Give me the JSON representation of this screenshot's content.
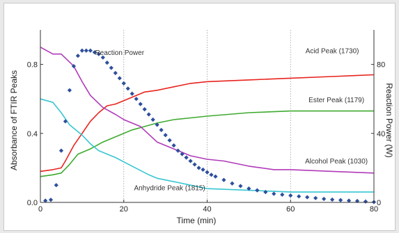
{
  "chart_data": {
    "type": "line",
    "xlabel": "Time (min)",
    "ylabel_left": "Absorbance of FTIR Peaks",
    "ylabel_right": "Reaction Power (W)",
    "xlim": [
      0,
      80
    ],
    "ylim_left": [
      0,
      1.0
    ],
    "ylim_right": [
      0,
      100
    ],
    "x_ticks": [
      "0",
      "20",
      "40",
      "60",
      "80"
    ],
    "y_left_ticks": [
      "0.0",
      "0.4",
      "0.8"
    ],
    "y_right_ticks": [
      "0",
      "40",
      "80"
    ],
    "grid": "vertical dotted at x = 20, 40, 60",
    "series": [
      {
        "name": "Acid Peak (1730)",
        "color": "#e8231e",
        "axis": "left",
        "x": [
          0,
          3,
          5,
          6,
          8,
          10,
          12,
          14,
          16,
          18,
          20,
          22,
          25,
          28,
          32,
          36,
          40,
          50,
          60,
          70,
          80
        ],
        "y": [
          0.18,
          0.19,
          0.2,
          0.24,
          0.33,
          0.4,
          0.47,
          0.52,
          0.56,
          0.57,
          0.59,
          0.61,
          0.64,
          0.65,
          0.67,
          0.69,
          0.7,
          0.71,
          0.72,
          0.73,
          0.74
        ]
      },
      {
        "name": "Ester Peak (1179)",
        "color": "#3daa2e",
        "axis": "left",
        "x": [
          0,
          3,
          5,
          7,
          9,
          10,
          12,
          15,
          18,
          20,
          22,
          25,
          28,
          32,
          36,
          40,
          50,
          60,
          70,
          80
        ],
        "y": [
          0.15,
          0.16,
          0.17,
          0.22,
          0.28,
          0.29,
          0.31,
          0.35,
          0.38,
          0.4,
          0.42,
          0.44,
          0.46,
          0.48,
          0.49,
          0.5,
          0.52,
          0.53,
          0.53,
          0.53
        ]
      },
      {
        "name": "Alcohol Peak (1030)",
        "color": "#b03ab8",
        "axis": "left",
        "x": [
          0,
          3,
          5,
          8,
          10,
          12,
          15,
          18,
          20,
          24,
          28,
          32,
          36,
          40,
          44,
          50,
          56,
          60,
          70,
          80
        ],
        "y": [
          0.9,
          0.86,
          0.86,
          0.79,
          0.7,
          0.62,
          0.55,
          0.51,
          0.48,
          0.44,
          0.35,
          0.31,
          0.27,
          0.25,
          0.24,
          0.21,
          0.19,
          0.19,
          0.18,
          0.17
        ]
      },
      {
        "name": "Anhydride Peak (1815)",
        "color": "#37c6d2",
        "axis": "left",
        "x": [
          0,
          3,
          5,
          7,
          10,
          12,
          14,
          18,
          22,
          26,
          28,
          32,
          36,
          40,
          50,
          60,
          70,
          80
        ],
        "y": [
          0.6,
          0.58,
          0.52,
          0.45,
          0.39,
          0.34,
          0.3,
          0.26,
          0.21,
          0.16,
          0.14,
          0.12,
          0.1,
          0.08,
          0.07,
          0.06,
          0.06,
          0.06
        ]
      },
      {
        "name": "Reaction Power",
        "color": "#2e4f9c",
        "axis": "right",
        "style": "markers",
        "x": [
          1.2,
          2.5,
          3.8,
          5,
          6,
          7,
          8,
          9,
          10,
          11,
          12,
          13,
          14,
          15,
          16,
          17,
          18,
          19,
          20,
          21,
          22,
          23,
          24,
          25,
          26,
          27,
          28,
          29,
          30,
          31,
          32,
          33,
          34,
          35,
          36,
          37,
          38,
          39,
          40,
          41,
          42,
          44,
          46,
          48,
          50,
          52,
          54,
          56,
          58,
          60,
          62,
          64,
          66,
          68,
          70,
          72,
          74,
          76,
          78,
          80
        ],
        "y": [
          1,
          1.5,
          10,
          30,
          47,
          65,
          79,
          85,
          88,
          88,
          88,
          87,
          86,
          84,
          81,
          78,
          75,
          72,
          69,
          66,
          63,
          60,
          57,
          54,
          51,
          48,
          45,
          42,
          39,
          36,
          33,
          30,
          28,
          26,
          24,
          22,
          20,
          19,
          17.5,
          16,
          15,
          13,
          11,
          9.5,
          8,
          7,
          6,
          5,
          4.5,
          4,
          3.5,
          3,
          2.5,
          2,
          1.6,
          1.3,
          1,
          0.8,
          0.5,
          0.2
        ]
      }
    ],
    "annotations": [
      {
        "text": "Reaction Power",
        "x": 19,
        "y": 0.855
      },
      {
        "text": "Acid Peak (1730)",
        "x": 70,
        "y": 0.865
      },
      {
        "text": "Ester Peak (1179)",
        "x": 71,
        "y": 0.58
      },
      {
        "text": "Alcohol Peak (1030)",
        "x": 71,
        "y": 0.225
      },
      {
        "text": "Anhydride Peak (1815)",
        "x": 31,
        "y": 0.07
      }
    ]
  }
}
